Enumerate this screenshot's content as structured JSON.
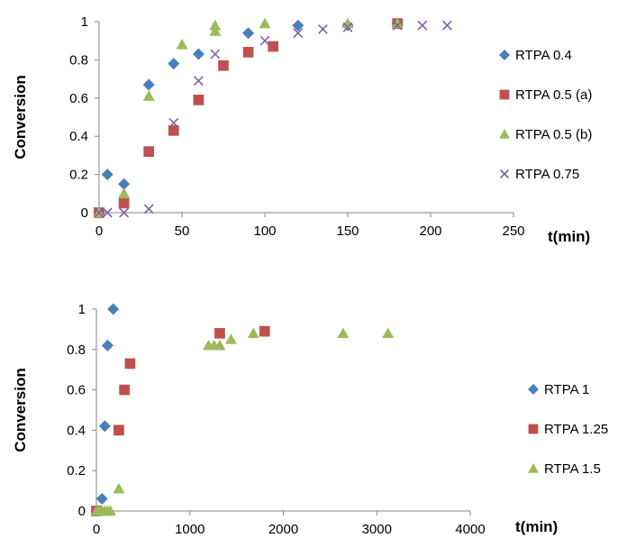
{
  "colors": {
    "blue": "#4a7ebb",
    "red": "#c0504d",
    "green": "#9bbb59",
    "purple": "#7f63a1"
  },
  "chart_data": [
    {
      "type": "scatter",
      "ylabel": "Conversion",
      "xlabel": "t(min)",
      "xlim": [
        0,
        250
      ],
      "ylim": [
        0,
        1
      ],
      "xticks": [
        "0",
        "50",
        "100",
        "150",
        "200",
        "250"
      ],
      "yticks": [
        "0",
        "0.2",
        "0.4",
        "0.6",
        "0.8",
        "1"
      ],
      "legend_position": "right",
      "series": [
        {
          "name": "RTPA 0.4",
          "marker": "diamond",
          "color": "#4a7ebb",
          "points": [
            [
              0,
              0
            ],
            [
              5,
              0.2
            ],
            [
              15,
              0.15
            ],
            [
              30,
              0.67
            ],
            [
              45,
              0.78
            ],
            [
              60,
              0.83
            ],
            [
              90,
              0.94
            ],
            [
              120,
              0.98
            ],
            [
              150,
              0.98
            ],
            [
              180,
              0.99
            ]
          ]
        },
        {
          "name": "RTPA 0.5 (a)",
          "marker": "square",
          "color": "#c0504d",
          "points": [
            [
              0,
              0
            ],
            [
              15,
              0.05
            ],
            [
              30,
              0.32
            ],
            [
              45,
              0.43
            ],
            [
              60,
              0.59
            ],
            [
              75,
              0.77
            ],
            [
              90,
              0.84
            ],
            [
              105,
              0.87
            ],
            [
              180,
              0.99
            ]
          ]
        },
        {
          "name": "RTPA 0.5 (b)",
          "marker": "triangle",
          "color": "#9bbb59",
          "points": [
            [
              0,
              0
            ],
            [
              15,
              0.1
            ],
            [
              30,
              0.61
            ],
            [
              50,
              0.88
            ],
            [
              70,
              0.95
            ],
            [
              70,
              0.98
            ],
            [
              100,
              0.99
            ],
            [
              150,
              0.99
            ],
            [
              180,
              0.99
            ]
          ]
        },
        {
          "name": "RTPA 0.75",
          "marker": "x",
          "color": "#7f63a1",
          "points": [
            [
              0,
              0
            ],
            [
              5,
              0
            ],
            [
              15,
              0
            ],
            [
              30,
              0.02
            ],
            [
              45,
              0.47
            ],
            [
              60,
              0.69
            ],
            [
              70,
              0.83
            ],
            [
              100,
              0.9
            ],
            [
              120,
              0.94
            ],
            [
              135,
              0.96
            ],
            [
              150,
              0.97
            ],
            [
              180,
              0.98
            ],
            [
              195,
              0.98
            ],
            [
              210,
              0.98
            ]
          ]
        }
      ]
    },
    {
      "type": "scatter",
      "ylabel": "Conversion",
      "xlabel": "t(min)",
      "xlim": [
        0,
        4000
      ],
      "ylim": [
        0,
        1
      ],
      "xticks": [
        "0",
        "1000",
        "2000",
        "3000",
        "4000"
      ],
      "yticks": [
        "0",
        "0.2",
        "0.4",
        "0.6",
        "0.8",
        "1"
      ],
      "legend_position": "right",
      "series": [
        {
          "name": "RTPA 1",
          "marker": "diamond",
          "color": "#4a7ebb",
          "points": [
            [
              0,
              0
            ],
            [
              60,
              0.06
            ],
            [
              90,
              0.42
            ],
            [
              120,
              0.82
            ],
            [
              180,
              1.0
            ]
          ]
        },
        {
          "name": "RTPA 1.25",
          "marker": "square",
          "color": "#c0504d",
          "points": [
            [
              0,
              0
            ],
            [
              240,
              0.4
            ],
            [
              300,
              0.6
            ],
            [
              360,
              0.73
            ],
            [
              1320,
              0.88
            ],
            [
              1800,
              0.89
            ]
          ]
        },
        {
          "name": "RTPA 1.5",
          "marker": "triangle",
          "color": "#9bbb59",
          "points": [
            [
              0,
              0
            ],
            [
              30,
              0
            ],
            [
              60,
              0
            ],
            [
              90,
              0
            ],
            [
              120,
              0
            ],
            [
              150,
              0
            ],
            [
              240,
              0.11
            ],
            [
              1200,
              0.82
            ],
            [
              1260,
              0.82
            ],
            [
              1320,
              0.82
            ],
            [
              1440,
              0.85
            ],
            [
              1680,
              0.88
            ],
            [
              2640,
              0.88
            ],
            [
              3120,
              0.88
            ]
          ]
        }
      ]
    }
  ]
}
